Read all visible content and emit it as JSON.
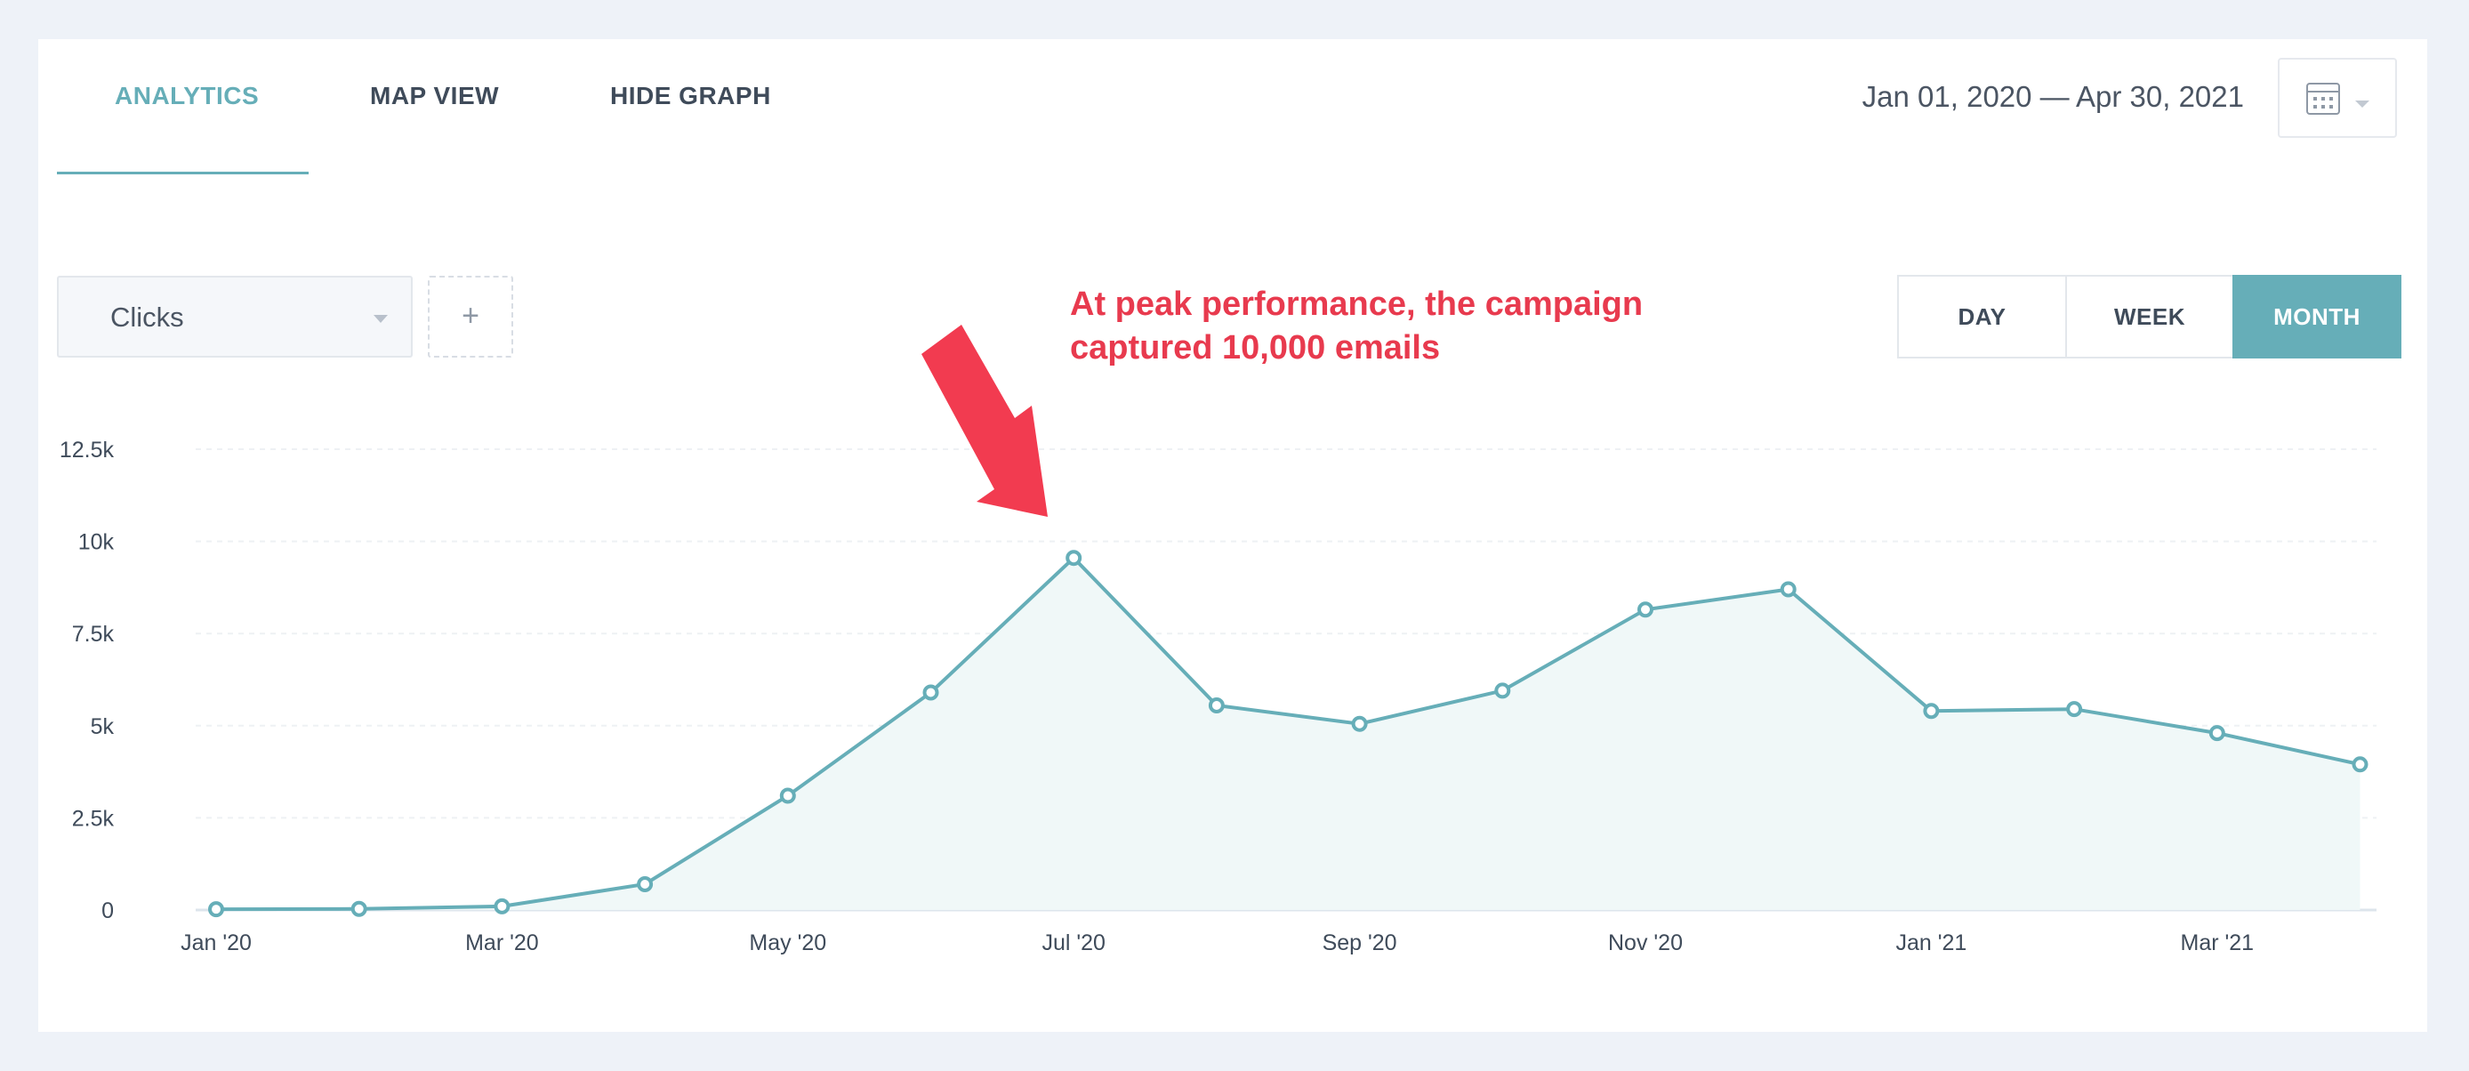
{
  "tabs": [
    {
      "label": "ANALYTICS",
      "active": true
    },
    {
      "label": "MAP VIEW",
      "active": false
    },
    {
      "label": "HIDE GRAPH",
      "active": false
    }
  ],
  "date_range": "Jan 01, 2020 — Apr 30, 2021",
  "calendar_icon": "calendar-icon",
  "metric_select": {
    "value": "Clicks"
  },
  "add_button": {
    "label": "+"
  },
  "period": {
    "options": [
      "DAY",
      "WEEK",
      "MONTH"
    ],
    "selected": "MONTH"
  },
  "annotation": {
    "line1": "At peak performance, the campaign",
    "line2": "captured 10,000 emails",
    "color": "#e83a4e"
  },
  "colors": {
    "accent": "#66aeb8",
    "area_fill": "#f0f8f8",
    "annotation_red": "#f23b50"
  },
  "chart_data": {
    "type": "area",
    "x": [
      "Jan '20",
      "Feb '20",
      "Mar '20",
      "Apr '20",
      "May '20",
      "Jun '20",
      "Jul '20",
      "Aug '20",
      "Sep '20",
      "Oct '20",
      "Nov '20",
      "Dec '20",
      "Jan '21",
      "Feb '21",
      "Mar '21",
      "Apr '21"
    ],
    "x_tick_labels": [
      "Jan '20",
      "Mar '20",
      "May '20",
      "Jul '20",
      "Sep '20",
      "Nov '20",
      "Jan '21",
      "Mar '21"
    ],
    "series": [
      {
        "values": [
          20,
          30,
          100,
          700,
          3100,
          5900,
          9550,
          5550,
          5050,
          5950,
          8150,
          8700,
          5400,
          5450,
          4800,
          3950
        ]
      }
    ],
    "y_ticks": [
      "0",
      "2.5k",
      "5k",
      "7.5k",
      "10k",
      "12.5k"
    ],
    "ylim": [
      0,
      12500
    ],
    "grid": true,
    "legend": "none"
  }
}
